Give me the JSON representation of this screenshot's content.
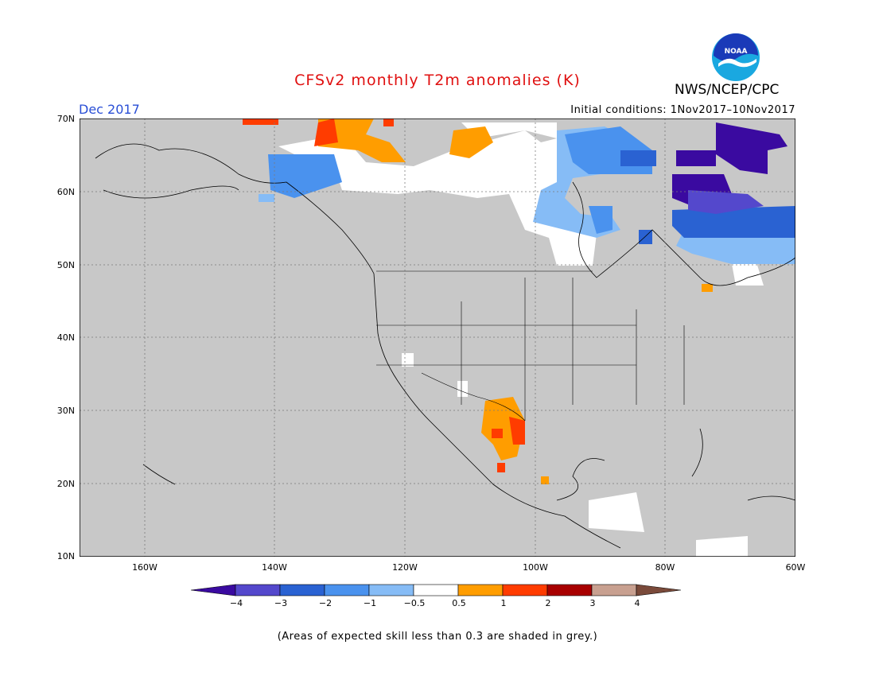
{
  "header": {
    "title": "CFSv2 monthly T2m anomalies (K)",
    "agency": "NWS/NCEP/CPC",
    "logo_text": "NOAA",
    "month": "Dec 2017",
    "initial_conditions": "Initial conditions: 1Nov2017–10Nov2017"
  },
  "map": {
    "lat_labels": [
      "70N",
      "60N",
      "50N",
      "40N",
      "30N",
      "20N",
      "10N"
    ],
    "lon_labels": [
      "160W",
      "140W",
      "120W",
      "100W",
      "80W",
      "60W"
    ],
    "lat_range": [
      10,
      70
    ],
    "lon_range": [
      -170,
      -60
    ],
    "background_grey": "#c8c8c8"
  },
  "colorbar": {
    "labels": [
      "−4",
      "−3",
      "−2",
      "−1",
      "−0.5",
      "0.5",
      "1",
      "2",
      "3",
      "4"
    ],
    "colors": [
      "#3a0aa0",
      "#5448cc",
      "#2a62d2",
      "#4a92ee",
      "#86bcf6",
      "#ffffff",
      "#ff9d00",
      "#ff3c00",
      "#a80000",
      "#c8a090",
      "#7a4a3a"
    ]
  },
  "footnote": "(Areas of expected skill less than 0.3 are shaded in grey.)"
}
